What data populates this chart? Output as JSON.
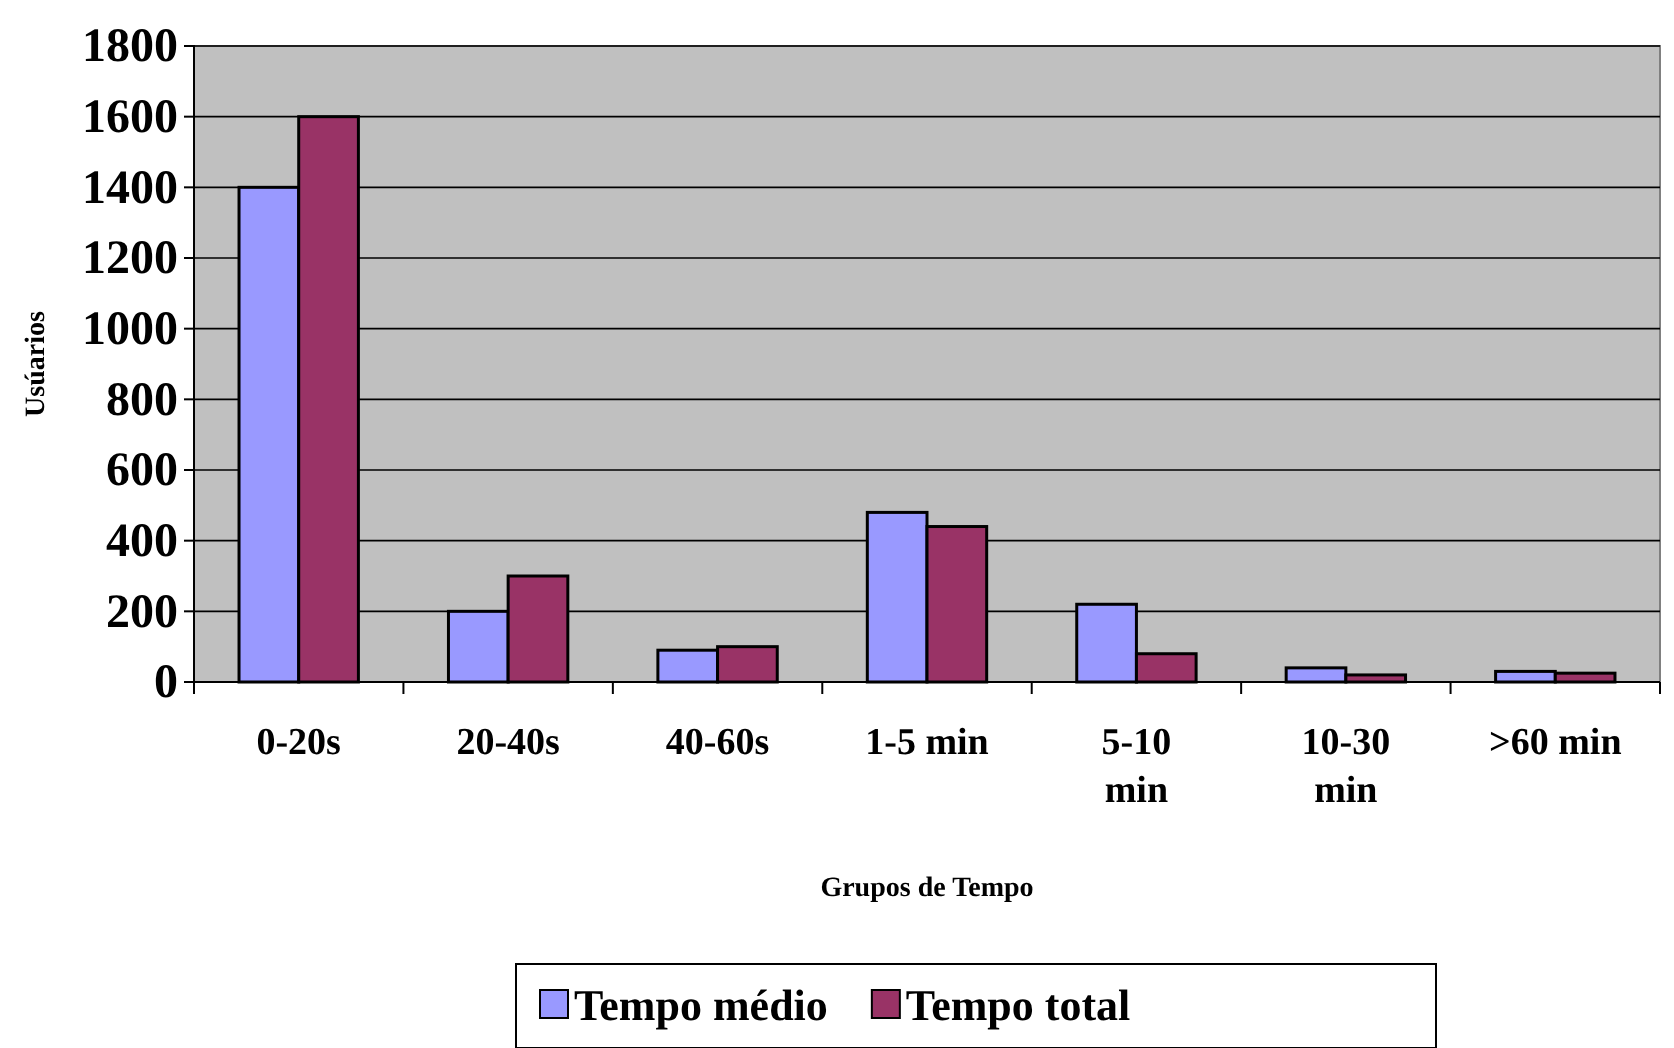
{
  "chart_data": {
    "type": "bar",
    "xlabel": "Grupos de Tempo",
    "ylabel": "Usúarios",
    "categories": [
      "0-20s",
      "20-40s",
      "40-60s",
      "1-5 min",
      "5-10 min",
      "10-30 min",
      ">60 min"
    ],
    "series": [
      {
        "name": "Tempo médio",
        "color": "#9999ff",
        "values": [
          1400,
          200,
          90,
          480,
          220,
          40,
          30
        ]
      },
      {
        "name": "Tempo total",
        "color": "#993366",
        "values": [
          1600,
          300,
          100,
          440,
          80,
          20,
          25
        ]
      }
    ],
    "ylim": [
      0,
      1800
    ],
    "yticks": [
      0,
      200,
      400,
      600,
      800,
      1000,
      1200,
      1400,
      1600,
      1800
    ],
    "grid": "y",
    "legend": "bottom"
  }
}
